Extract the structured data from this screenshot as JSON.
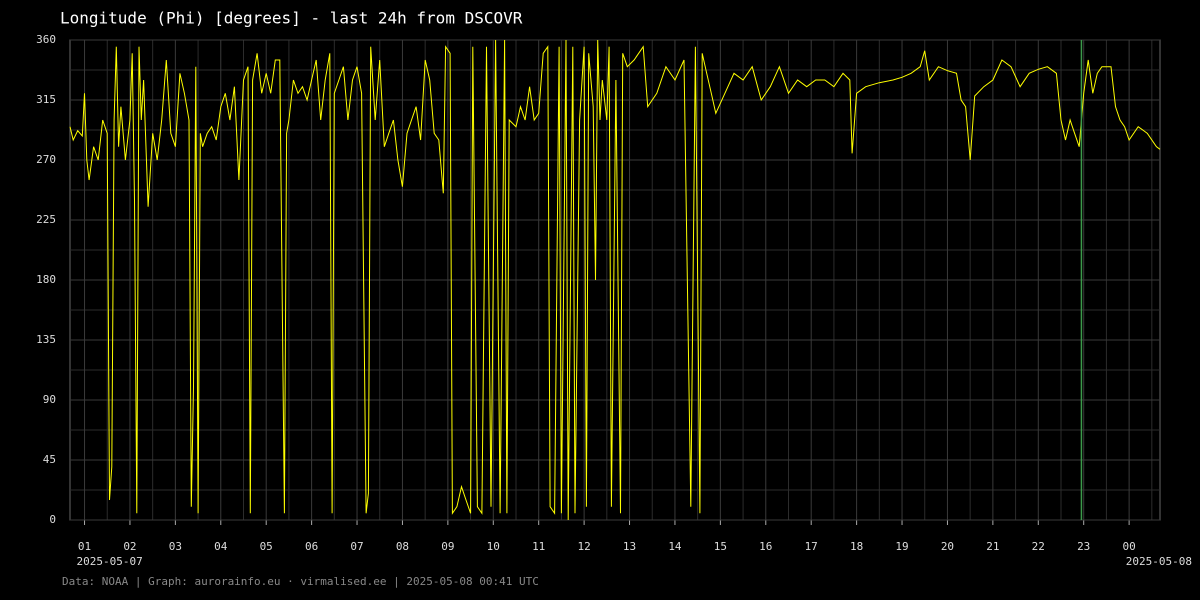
{
  "chart_data": {
    "type": "line",
    "title": "Longitude (Phi) [degrees] - last 24h from DSCOVR",
    "footer": "Data: NOAA | Graph: aurorainfo.eu · virmalised.ee | 2025-05-08 00:41 UTC",
    "color": "#ffff00",
    "marker_line": {
      "x": 22.95,
      "color": "#3c9a4a"
    },
    "xlim": [
      0.68,
      24.68
    ],
    "ylim": [
      0,
      360
    ],
    "yticks": [
      0,
      45,
      90,
      135,
      180,
      225,
      270,
      315,
      360
    ],
    "yminor": [
      22.5,
      67.5,
      112.5,
      157.5,
      202.5,
      247.5,
      292.5,
      337.5
    ],
    "xticks": [
      {
        "value": 1,
        "label": "01"
      },
      {
        "value": 2,
        "label": "02"
      },
      {
        "value": 3,
        "label": "03"
      },
      {
        "value": 4,
        "label": "04"
      },
      {
        "value": 5,
        "label": "05"
      },
      {
        "value": 6,
        "label": "06"
      },
      {
        "value": 7,
        "label": "07"
      },
      {
        "value": 8,
        "label": "08"
      },
      {
        "value": 9,
        "label": "09"
      },
      {
        "value": 10,
        "label": "10"
      },
      {
        "value": 11,
        "label": "11"
      },
      {
        "value": 12,
        "label": "12"
      },
      {
        "value": 13,
        "label": "13"
      },
      {
        "value": 14,
        "label": "14"
      },
      {
        "value": 15,
        "label": "15"
      },
      {
        "value": 16,
        "label": "16"
      },
      {
        "value": 17,
        "label": "17"
      },
      {
        "value": 18,
        "label": "18"
      },
      {
        "value": 19,
        "label": "19"
      },
      {
        "value": 20,
        "label": "20"
      },
      {
        "value": 21,
        "label": "21"
      },
      {
        "value": 22,
        "label": "22"
      },
      {
        "value": 23,
        "label": "23"
      },
      {
        "value": 24,
        "label": "00"
      }
    ],
    "x_date_labels": [
      {
        "value": 1,
        "label": "2025-05-07"
      },
      {
        "value": 24,
        "label": "2025-05-08"
      }
    ],
    "grid": true,
    "x": [
      0.68,
      0.75,
      0.85,
      0.95,
      1.0,
      1.05,
      1.1,
      1.2,
      1.3,
      1.4,
      1.5,
      1.55,
      1.6,
      1.65,
      1.7,
      1.75,
      1.8,
      1.9,
      2.0,
      2.05,
      2.1,
      2.15,
      2.2,
      2.25,
      2.3,
      2.4,
      2.5,
      2.6,
      2.7,
      2.8,
      2.9,
      3.0,
      3.1,
      3.2,
      3.3,
      3.35,
      3.4,
      3.45,
      3.5,
      3.55,
      3.6,
      3.7,
      3.8,
      3.9,
      4.0,
      4.1,
      4.2,
      4.3,
      4.4,
      4.5,
      4.6,
      4.65,
      4.7,
      4.8,
      4.9,
      5.0,
      5.1,
      5.2,
      5.3,
      5.4,
      5.45,
      5.5,
      5.6,
      5.7,
      5.8,
      5.9,
      6.0,
      6.1,
      6.2,
      6.3,
      6.4,
      6.45,
      6.5,
      6.6,
      6.7,
      6.8,
      6.9,
      7.0,
      7.1,
      7.2,
      7.25,
      7.3,
      7.4,
      7.5,
      7.6,
      7.7,
      7.8,
      7.9,
      8.0,
      8.1,
      8.2,
      8.3,
      8.4,
      8.5,
      8.6,
      8.7,
      8.8,
      8.9,
      8.95,
      9.05,
      9.1,
      9.2,
      9.3,
      9.4,
      9.5,
      9.55,
      9.65,
      9.75,
      9.85,
      9.95,
      10.05,
      10.15,
      10.25,
      10.3,
      10.35,
      10.5,
      10.6,
      10.7,
      10.8,
      10.9,
      11.0,
      11.1,
      11.2,
      11.25,
      11.35,
      11.45,
      11.5,
      11.6,
      11.65,
      11.75,
      11.8,
      11.9,
      12.0,
      12.05,
      12.1,
      12.2,
      12.25,
      12.3,
      12.35,
      12.4,
      12.5,
      12.55,
      12.6,
      12.7,
      12.8,
      12.85,
      12.95,
      13.1,
      13.3,
      13.4,
      13.6,
      13.8,
      14.0,
      14.2,
      14.35,
      14.45,
      14.55,
      14.6,
      14.7,
      14.8,
      14.9,
      15.1,
      15.3,
      15.5,
      15.7,
      15.9,
      16.1,
      16.3,
      16.5,
      16.7,
      16.9,
      17.1,
      17.3,
      17.5,
      17.7,
      17.85,
      17.9,
      18.0,
      18.2,
      18.5,
      18.8,
      19.0,
      19.2,
      19.4,
      19.5,
      19.6,
      19.8,
      20.0,
      20.2,
      20.3,
      20.4,
      20.5,
      20.6,
      20.8,
      21.0,
      21.2,
      21.4,
      21.6,
      21.8,
      22.0,
      22.2,
      22.4,
      22.5,
      22.6,
      22.7,
      22.8,
      22.9,
      23.0,
      23.1,
      23.2,
      23.3,
      23.4,
      23.6,
      23.7,
      23.8,
      23.9,
      24.0,
      24.2,
      24.4,
      24.6,
      24.68
    ],
    "values": [
      295,
      285,
      292,
      288,
      320,
      270,
      255,
      280,
      270,
      300,
      290,
      15,
      40,
      300,
      355,
      280,
      310,
      270,
      300,
      350,
      240,
      5,
      355,
      300,
      330,
      235,
      290,
      270,
      300,
      345,
      290,
      280,
      335,
      320,
      300,
      10,
      100,
      340,
      5,
      290,
      280,
      290,
      295,
      285,
      310,
      320,
      300,
      325,
      255,
      330,
      340,
      5,
      330,
      350,
      320,
      335,
      320,
      345,
      345,
      5,
      290,
      300,
      330,
      320,
      325,
      315,
      330,
      345,
      300,
      330,
      350,
      5,
      320,
      330,
      340,
      300,
      330,
      340,
      320,
      5,
      20,
      355,
      300,
      345,
      280,
      290,
      300,
      270,
      250,
      290,
      300,
      310,
      285,
      345,
      330,
      290,
      285,
      245,
      355,
      350,
      5,
      10,
      25,
      15,
      5,
      355,
      10,
      5,
      355,
      10,
      360,
      5,
      360,
      5,
      300,
      295,
      310,
      300,
      325,
      300,
      305,
      350,
      355,
      10,
      5,
      355,
      5,
      360,
      0,
      355,
      5,
      300,
      355,
      10,
      350,
      310,
      180,
      360,
      300,
      330,
      300,
      355,
      10,
      330,
      5,
      350,
      340,
      345,
      355,
      310,
      320,
      340,
      330,
      345,
      10,
      355,
      5,
      350,
      335,
      320,
      305,
      320,
      335,
      330,
      340,
      315,
      325,
      340,
      320,
      330,
      325,
      330,
      330,
      325,
      335,
      330,
      275,
      320,
      325,
      328,
      330,
      332,
      335,
      340,
      352,
      330,
      340,
      337,
      335,
      315,
      310,
      270,
      318,
      325,
      330,
      345,
      340,
      325,
      335,
      338,
      340,
      335,
      300,
      285,
      300,
      290,
      280,
      320,
      345,
      320,
      335,
      340,
      340,
      310,
      300,
      295,
      285,
      295,
      290,
      280,
      278
    ]
  }
}
